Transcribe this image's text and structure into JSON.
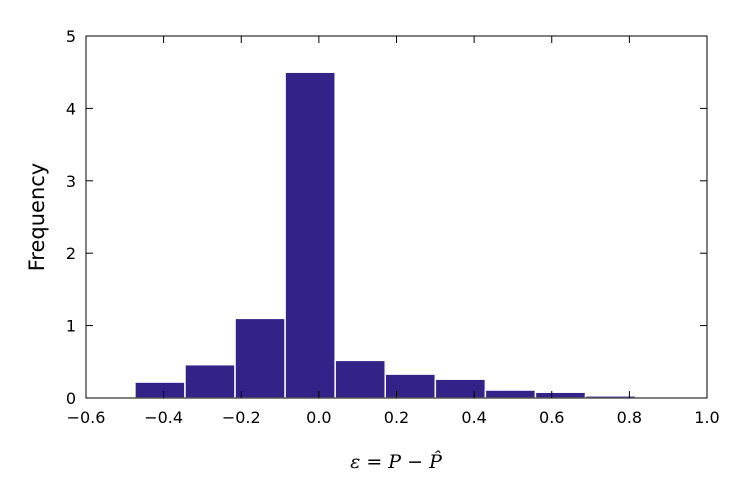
{
  "chart_data": {
    "type": "histogram",
    "xlabel": "ε = P − P̂",
    "ylabel": "Frequency",
    "bins": [
      -0.474,
      -0.345,
      -0.216,
      -0.087,
      0.042,
      0.171,
      0.3,
      0.429,
      0.558,
      0.687,
      0.816
    ],
    "values": [
      0.22,
      0.46,
      1.1,
      4.5,
      0.52,
      0.33,
      0.26,
      0.11,
      0.08,
      0.03
    ],
    "color": "#332288",
    "edgecolor": "#ffffff",
    "xlim": [
      -0.6,
      1.0
    ],
    "ylim": [
      0,
      5
    ],
    "xticks": [
      {
        "value": -0.6,
        "label": "−0.6"
      },
      {
        "value": -0.4,
        "label": "−0.4"
      },
      {
        "value": -0.2,
        "label": "−0.2"
      },
      {
        "value": 0,
        "label": "0.0"
      },
      {
        "value": 0.2,
        "label": "0.2"
      },
      {
        "value": 0.4,
        "label": "0.4"
      },
      {
        "value": 0.6,
        "label": "0.6"
      },
      {
        "value": 0.8,
        "label": "0.8"
      },
      {
        "value": 1.0,
        "label": "1.0"
      }
    ],
    "yticks": [
      0,
      1,
      2,
      3,
      4,
      5
    ]
  }
}
